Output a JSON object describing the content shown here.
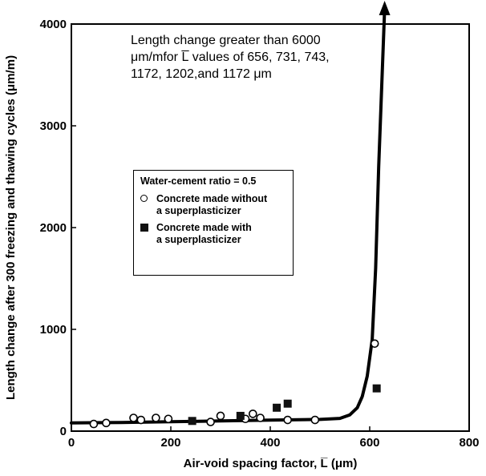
{
  "chart_data": {
    "type": "scatter",
    "xlabel": "Air-void spacing factor, L̅ (μm)",
    "ylabel": "Length change after 300 freezing and thawing cycles (μm/m)",
    "xlim": [
      0,
      800
    ],
    "ylim": [
      0,
      4000
    ],
    "x_ticks": [
      0,
      200,
      400,
      600,
      800
    ],
    "y_ticks": [
      0,
      1000,
      2000,
      3000,
      4000
    ],
    "grid": false,
    "legend_position": "center-left",
    "annotation": [
      "Length change greater than 6000",
      "μm/mfor L̅ values of 656, 731, 743,",
      "1172, 1202,and 1172 μm"
    ],
    "legend_title": "Water-cement ratio = 0.5",
    "series": [
      {
        "name": "Concrete made without\na superplasticizer",
        "marker": "open-circle",
        "points": [
          [
            45,
            70
          ],
          [
            70,
            80
          ],
          [
            125,
            130
          ],
          [
            140,
            110
          ],
          [
            170,
            130
          ],
          [
            195,
            120
          ],
          [
            280,
            90
          ],
          [
            300,
            150
          ],
          [
            350,
            120
          ],
          [
            365,
            170
          ],
          [
            380,
            130
          ],
          [
            435,
            110
          ],
          [
            490,
            110
          ],
          [
            610,
            860
          ]
        ]
      },
      {
        "name": "Concrete made with\na superplasticizer",
        "marker": "filled-square",
        "points": [
          [
            243,
            100
          ],
          [
            340,
            150
          ],
          [
            413,
            230
          ],
          [
            435,
            270
          ],
          [
            614,
            420
          ]
        ]
      }
    ],
    "trend_curve": [
      [
        0,
        80
      ],
      [
        100,
        85
      ],
      [
        200,
        92
      ],
      [
        300,
        100
      ],
      [
        400,
        108
      ],
      [
        500,
        115
      ],
      [
        540,
        125
      ],
      [
        560,
        160
      ],
      [
        575,
        230
      ],
      [
        585,
        340
      ],
      [
        595,
        540
      ],
      [
        605,
        900
      ],
      [
        612,
        1600
      ],
      [
        618,
        2600
      ],
      [
        625,
        3500
      ],
      [
        630,
        4150
      ]
    ]
  }
}
